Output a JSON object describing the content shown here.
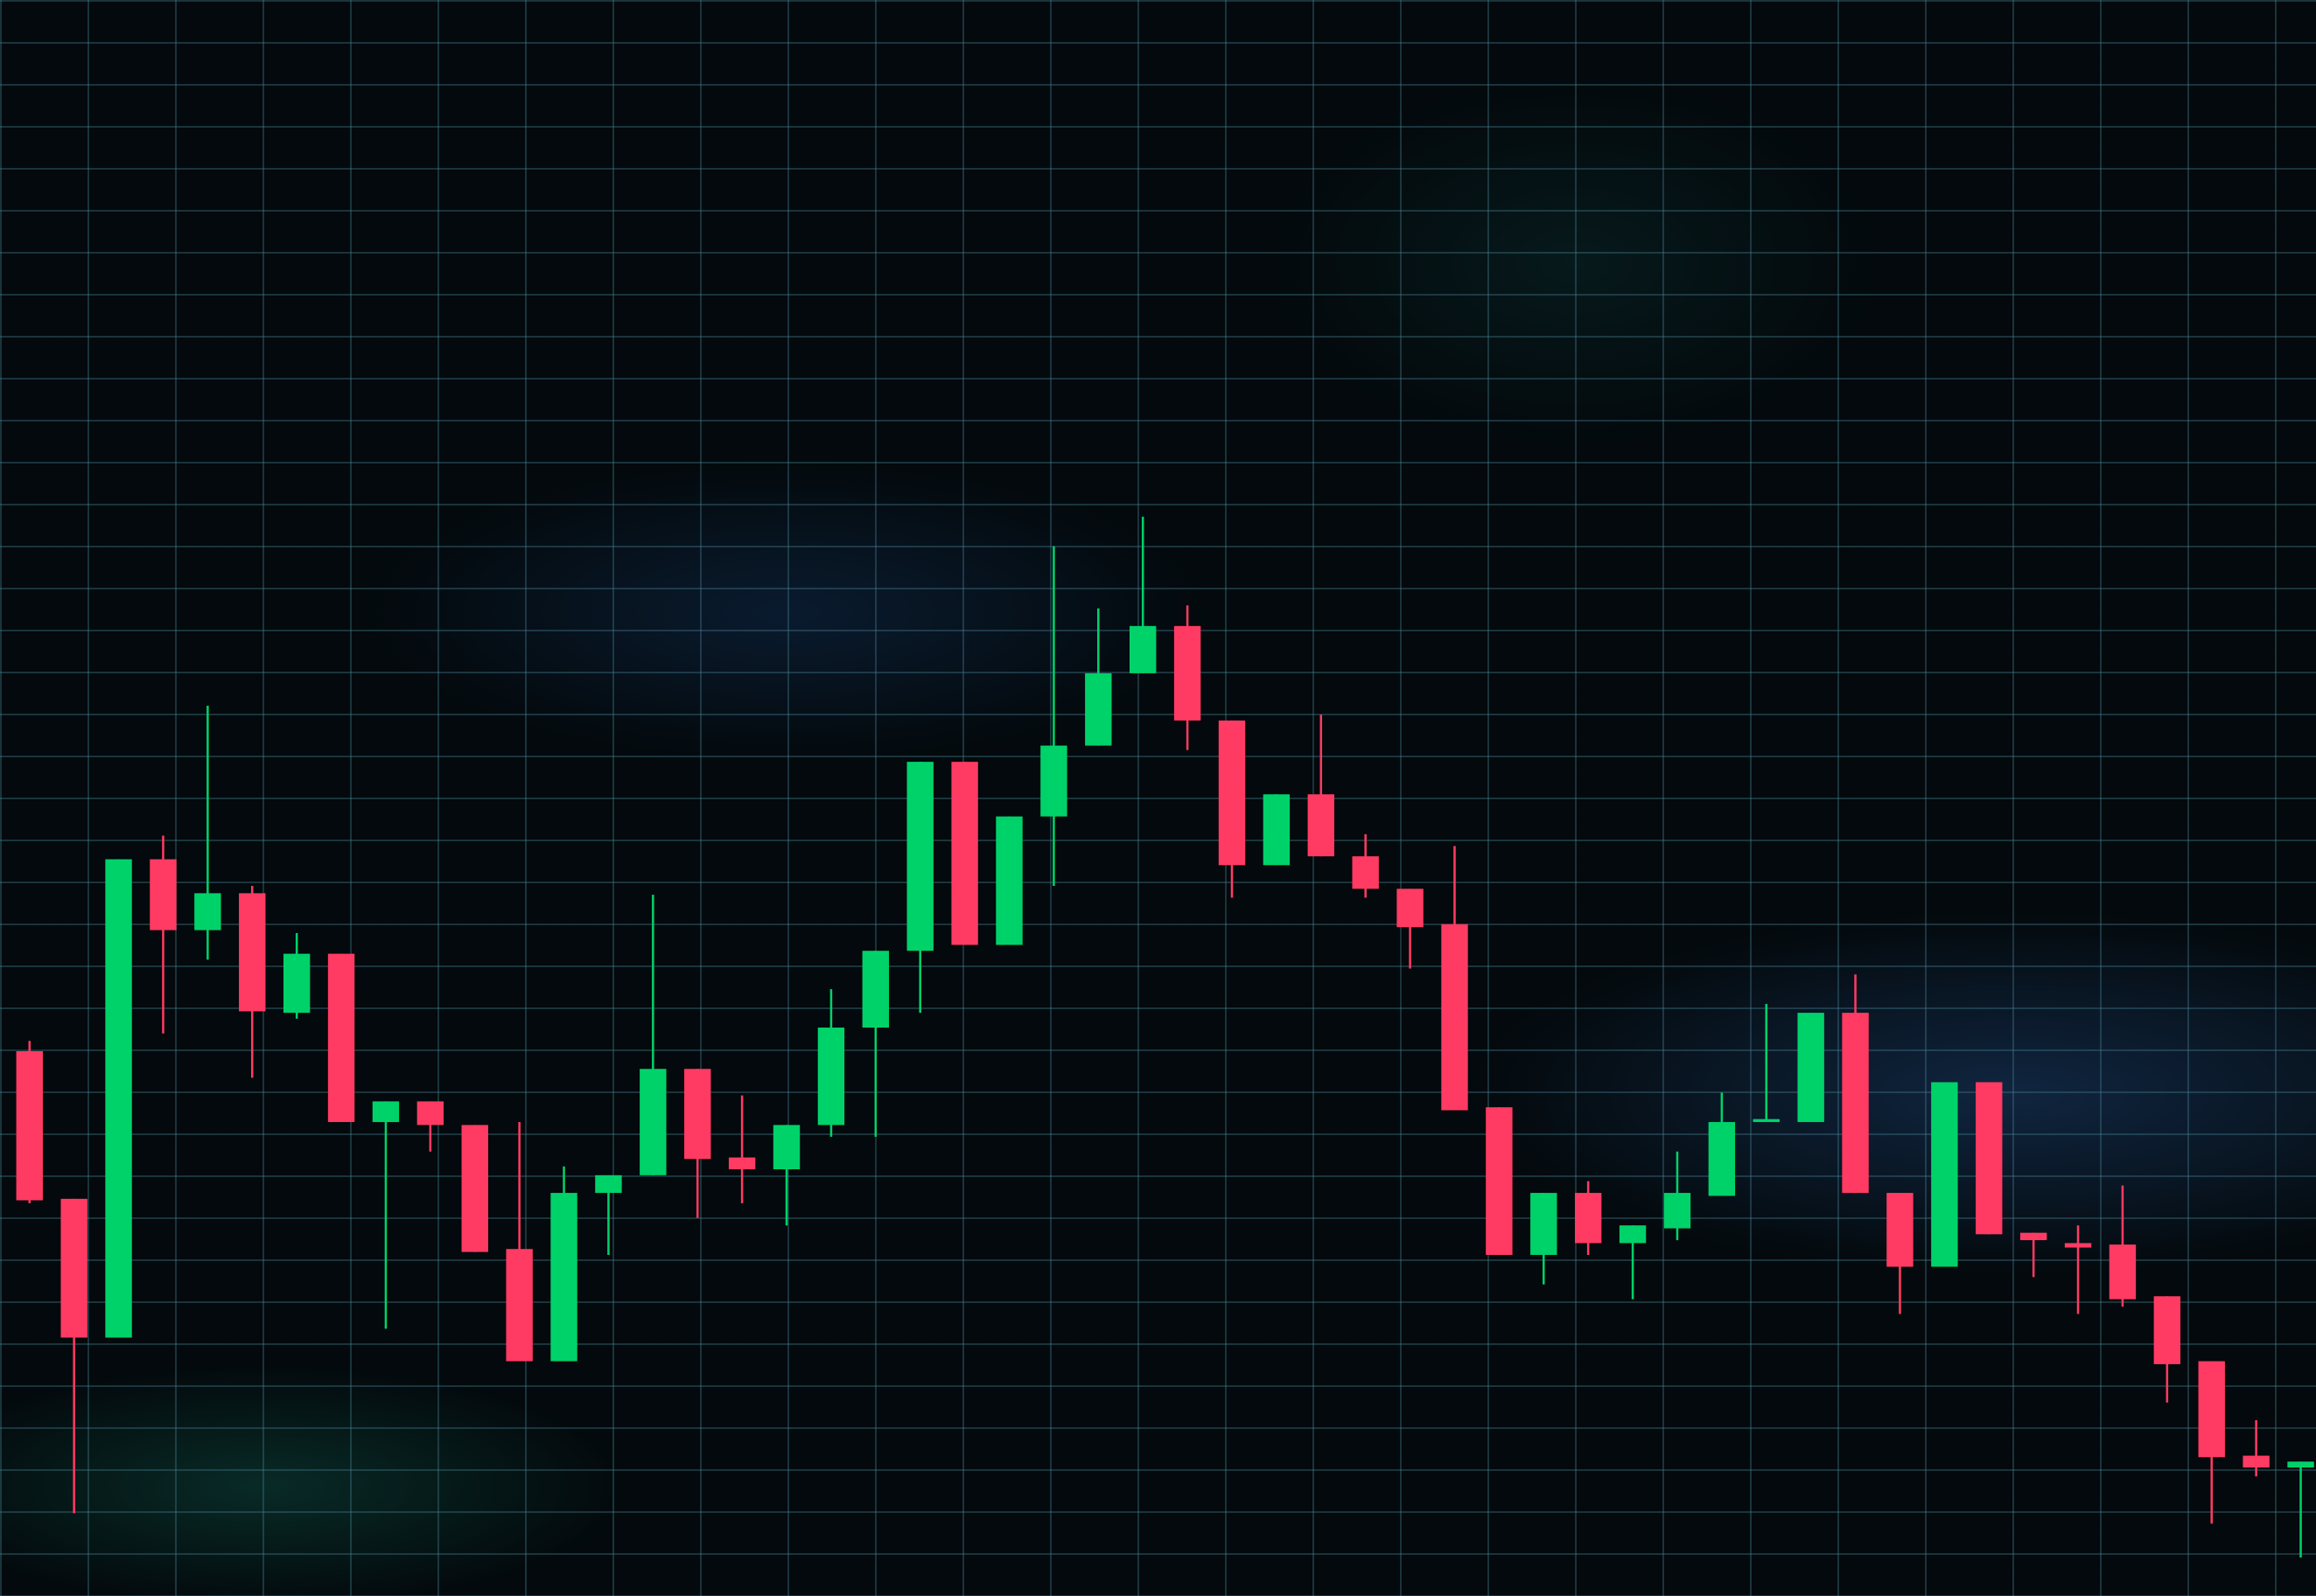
{
  "chart_data": {
    "type": "candlestick",
    "categories": [
      null,
      null,
      null,
      null,
      null,
      null,
      null,
      null,
      null,
      null,
      null,
      null,
      null,
      null,
      null,
      null,
      null,
      null,
      null,
      null,
      null,
      null,
      null,
      null,
      null,
      null,
      null,
      null,
      null,
      null,
      null,
      null,
      null,
      null,
      null,
      null,
      null,
      null,
      null,
      null,
      null,
      null,
      null,
      null,
      null,
      null,
      null,
      null,
      null,
      null,
      null,
      null
    ],
    "open": [
      369,
      269,
      175,
      499,
      451,
      476,
      395,
      435,
      321,
      335,
      319,
      235,
      159,
      273,
      285,
      357,
      297,
      289,
      319,
      385,
      437,
      565,
      441,
      528,
      576,
      625,
      657,
      593,
      495,
      543,
      501,
      479,
      455,
      331,
      231,
      273,
      239,
      249,
      271,
      321,
      321,
      395,
      273,
      223,
      348,
      246,
      239,
      238,
      203,
      159,
      95,
      87
    ],
    "high": [
      376,
      269,
      499,
      515,
      603,
      481,
      449,
      435,
      335,
      335,
      319,
      321,
      291,
      285,
      475,
      357,
      339,
      319,
      411,
      437,
      565,
      565,
      528,
      711,
      669,
      731,
      671,
      593,
      543,
      597,
      516,
      479,
      508,
      331,
      273,
      281,
      251,
      301,
      341,
      401,
      395,
      421,
      273,
      348,
      348,
      246,
      251,
      278,
      203,
      159,
      119,
      91
    ],
    "low": [
      266,
      56,
      175,
      381,
      431,
      351,
      391,
      321,
      181,
      301,
      233,
      159,
      159,
      231,
      285,
      256,
      266,
      251,
      311,
      311,
      395,
      441,
      441,
      481,
      576,
      625,
      573,
      473,
      495,
      501,
      473,
      425,
      329,
      231,
      211,
      231,
      201,
      241,
      271,
      321,
      321,
      273,
      191,
      223,
      245,
      216,
      191,
      196,
      131,
      49,
      81,
      26
    ],
    "close": [
      268,
      175,
      499,
      451,
      476,
      396,
      435,
      321,
      335,
      319,
      233,
      159,
      273,
      285,
      357,
      296,
      289,
      319,
      385,
      437,
      565,
      441,
      528,
      576,
      625,
      657,
      593,
      495,
      543,
      501,
      479,
      453,
      329,
      231,
      273,
      239,
      251,
      273,
      321,
      323,
      395,
      273,
      223,
      348,
      245,
      241,
      236,
      201,
      157,
      94,
      87,
      91
    ],
    "ylim": [
      0,
      1081
    ],
    "up_color": "#00d26a",
    "down_color": "#ff3b63",
    "grid": true
  }
}
